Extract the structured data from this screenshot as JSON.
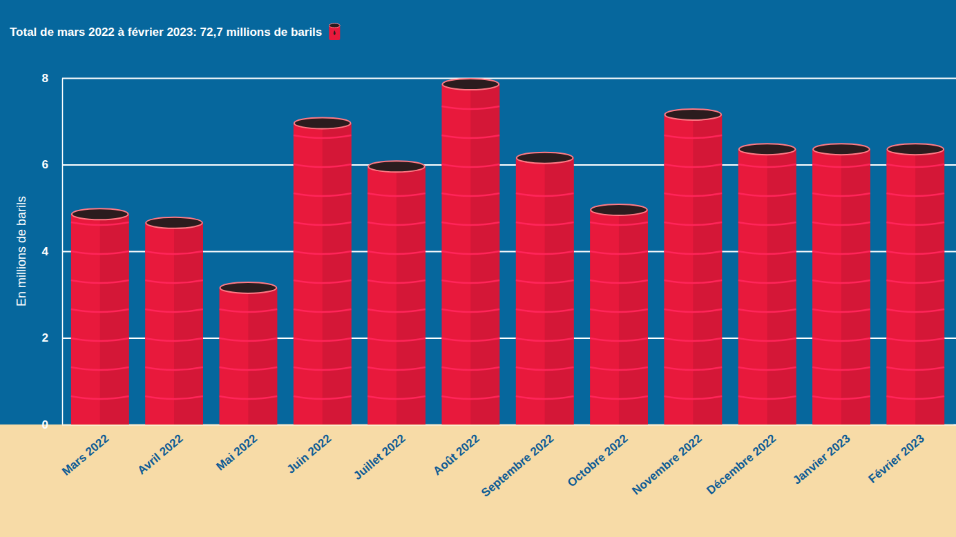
{
  "chart_data": {
    "type": "bar",
    "title": "Total de mars 2022 à février 2023: 72,7 millions de barils",
    "ylabel": "En millions de barils",
    "categories": [
      "Mars 2022",
      "Avril 2022",
      "Mai 2022",
      "Juin 2022",
      "Juillet 2022",
      "Août 2022",
      "Septembre 2022",
      "Octobre 2022",
      "Novembre 2022",
      "Décembre 2022",
      "Janvier 2023",
      "Février 2023"
    ],
    "values": [
      5.0,
      4.8,
      3.3,
      7.1,
      6.1,
      8.0,
      6.3,
      5.1,
      7.3,
      6.5,
      6.5,
      6.5
    ],
    "color": "#e8193c",
    "ylim": [
      0,
      8
    ],
    "yticks": [
      0,
      2,
      4,
      6,
      8
    ],
    "grid": true
  }
}
